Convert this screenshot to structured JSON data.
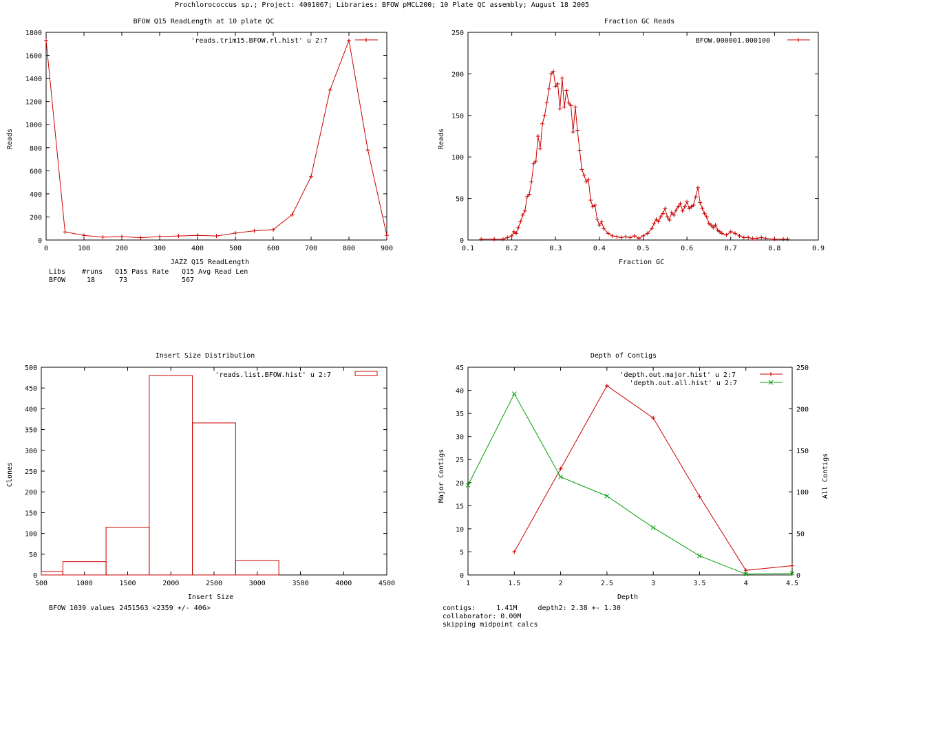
{
  "page_title": "Prochlorococcus sp.; Project: 4001067; Libraries: BFOW pMCL200; 10 Plate QC assembly; August 18 2005",
  "colors": {
    "series1": "#cc0000",
    "series2": "#00a000",
    "axis": "#000000"
  },
  "chart_data": [
    {
      "id": "readlength",
      "type": "line",
      "title": "BFOW Q15 ReadLength at 10 plate QC",
      "xlabel": "JAZZ Q15 ReadLength",
      "ylabel": "Reads",
      "xlim": [
        0,
        900
      ],
      "ylim": [
        0,
        1800
      ],
      "xticks": [
        0,
        100,
        200,
        300,
        400,
        500,
        600,
        700,
        800,
        900
      ],
      "yticks": [
        0,
        200,
        400,
        600,
        800,
        1000,
        1200,
        1400,
        1600,
        1800
      ],
      "legend": "top-right",
      "series": [
        {
          "name": "'reads.trim15.BFOW.rl.hist' u 2:7",
          "x": [
            0,
            50,
            100,
            150,
            200,
            250,
            300,
            350,
            400,
            450,
            500,
            550,
            600,
            650,
            700,
            750,
            800,
            850,
            900
          ],
          "y": [
            1730,
            70,
            40,
            25,
            30,
            20,
            30,
            35,
            40,
            35,
            60,
            80,
            90,
            220,
            550,
            1300,
            1730,
            780,
            40
          ]
        }
      ],
      "stats_table": {
        "headers": [
          "Libs",
          "#runs",
          "Q15 Pass Rate",
          "Q15 Avg Read Len"
        ],
        "rows": [
          [
            "BFOW",
            "18",
            "73",
            "567"
          ]
        ]
      }
    },
    {
      "id": "gc",
      "type": "line",
      "title": "Fraction GC Reads",
      "xlabel": "Fraction GC",
      "ylabel": "Reads",
      "xlim": [
        0.1,
        0.9
      ],
      "ylim": [
        0,
        250
      ],
      "xticks": [
        0.1,
        0.2,
        0.3,
        0.4,
        0.5,
        0.6,
        0.7,
        0.8,
        0.9
      ],
      "yticks": [
        0,
        50,
        100,
        150,
        200,
        250
      ],
      "legend": "top-right",
      "series": [
        {
          "name": "BFOW.000001.000100",
          "x": [
            0.13,
            0.16,
            0.18,
            0.19,
            0.2,
            0.205,
            0.21,
            0.215,
            0.22,
            0.225,
            0.23,
            0.235,
            0.24,
            0.245,
            0.25,
            0.255,
            0.26,
            0.265,
            0.27,
            0.275,
            0.28,
            0.285,
            0.29,
            0.295,
            0.3,
            0.305,
            0.31,
            0.315,
            0.32,
            0.325,
            0.33,
            0.335,
            0.34,
            0.345,
            0.35,
            0.355,
            0.36,
            0.365,
            0.37,
            0.375,
            0.38,
            0.385,
            0.39,
            0.395,
            0.4,
            0.405,
            0.41,
            0.42,
            0.43,
            0.44,
            0.45,
            0.46,
            0.47,
            0.48,
            0.49,
            0.5,
            0.51,
            0.52,
            0.525,
            0.53,
            0.535,
            0.54,
            0.545,
            0.55,
            0.555,
            0.56,
            0.565,
            0.57,
            0.575,
            0.58,
            0.585,
            0.59,
            0.595,
            0.6,
            0.605,
            0.61,
            0.615,
            0.62,
            0.625,
            0.63,
            0.635,
            0.64,
            0.645,
            0.65,
            0.655,
            0.66,
            0.665,
            0.67,
            0.675,
            0.68,
            0.69,
            0.7,
            0.71,
            0.72,
            0.73,
            0.74,
            0.75,
            0.76,
            0.77,
            0.78,
            0.8,
            0.82,
            0.83
          ],
          "y": [
            1,
            1,
            1,
            3,
            5,
            10,
            8,
            15,
            22,
            30,
            35,
            52,
            55,
            70,
            92,
            95,
            125,
            110,
            140,
            150,
            165,
            182,
            200,
            203,
            185,
            188,
            158,
            195,
            160,
            180,
            165,
            162,
            130,
            160,
            132,
            108,
            85,
            78,
            70,
            73,
            48,
            40,
            42,
            25,
            18,
            22,
            14,
            8,
            5,
            4,
            3,
            4,
            3,
            5,
            2,
            5,
            8,
            14,
            20,
            25,
            22,
            28,
            32,
            38,
            28,
            24,
            33,
            30,
            36,
            40,
            44,
            35,
            40,
            46,
            38,
            40,
            42,
            52,
            63,
            45,
            38,
            32,
            28,
            20,
            18,
            15,
            18,
            12,
            10,
            8,
            6,
            10,
            8,
            5,
            3,
            3,
            2,
            2,
            3,
            2,
            1,
            1,
            1
          ]
        }
      ]
    },
    {
      "id": "insertsize",
      "type": "bar",
      "title": "Insert Size Distribution",
      "xlabel": "Insert Size",
      "ylabel": "Clones",
      "xlim": [
        500,
        4500
      ],
      "ylim": [
        0,
        500
      ],
      "xticks": [
        500,
        1000,
        1500,
        2000,
        2500,
        3000,
        3500,
        4000,
        4500
      ],
      "yticks": [
        0,
        50,
        100,
        150,
        200,
        250,
        300,
        350,
        400,
        450,
        500
      ],
      "legend": "top-right",
      "series": [
        {
          "name": "'reads.list.BFOW.hist' u 2:7",
          "bins": [
            [
              500,
              750
            ],
            [
              750,
              1250
            ],
            [
              1250,
              1750
            ],
            [
              1750,
              2250
            ],
            [
              2250,
              2750
            ],
            [
              2750,
              3250
            ]
          ],
          "values": [
            8,
            32,
            115,
            480,
            366,
            35
          ]
        }
      ],
      "stats_line": "BFOW 1039 values 2451563 <2359 +/- 406>"
    },
    {
      "id": "depth",
      "type": "line",
      "title": "Depth of Contigs",
      "xlabel": "Depth",
      "ylabel": "Major Contigs",
      "y2label": "All Contigs",
      "xlim": [
        1,
        4.5
      ],
      "ylim": [
        0,
        45
      ],
      "y2lim": [
        0,
        250
      ],
      "xticks": [
        1,
        1.5,
        2,
        2.5,
        3,
        3.5,
        4,
        4.5
      ],
      "yticks": [
        0,
        5,
        10,
        15,
        20,
        25,
        30,
        35,
        40,
        45
      ],
      "y2ticks": [
        0,
        50,
        100,
        150,
        200,
        250
      ],
      "legend": "top-right",
      "series": [
        {
          "name": "'depth.out.major.hist' u 2:7",
          "axis": "y1",
          "x": [
            1.5,
            2,
            2.5,
            3,
            3.5,
            4,
            4.5
          ],
          "y": [
            5,
            23,
            41,
            34,
            17,
            1,
            2
          ]
        },
        {
          "name": "'depth.out.all.hist' u 2:7",
          "axis": "y2",
          "x": [
            1,
            1.5,
            2,
            2.5,
            3,
            3.5,
            4,
            4.5
          ],
          "y": [
            108,
            218,
            118,
            95,
            57,
            23,
            1,
            2
          ]
        }
      ],
      "notes": [
        "contigs:     1.41M     depth2: 2.38 +- 1.30",
        "collaborator: 0.00M",
        "skipping midpoint calcs"
      ]
    }
  ]
}
